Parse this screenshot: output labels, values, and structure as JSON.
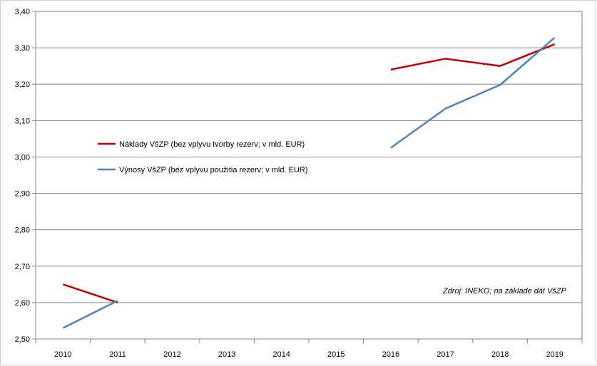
{
  "chart_data": {
    "type": "line",
    "x": [
      "2010",
      "2011",
      "2012",
      "2013",
      "2014",
      "2015",
      "2016",
      "2017",
      "2018",
      "2019"
    ],
    "ylim": [
      2.5,
      3.4
    ],
    "yticks": [
      "2,50",
      "2,60",
      "2,70",
      "2,80",
      "2,90",
      "3,00",
      "3,10",
      "3,20",
      "3,30",
      "3,40"
    ],
    "grid": "horizontal",
    "legend_position": "left",
    "series": [
      {
        "name": "Náklady VšZP (bez vplyvu tvorby rezerv; v mld. EUR)",
        "color": "#C00000",
        "values": [
          2.65,
          2.6,
          null,
          null,
          null,
          null,
          3.24,
          3.27,
          3.25,
          3.31
        ]
      },
      {
        "name": "Výnosy VšZP (bez vplyvu použitia rezerv; v mld. EUR)",
        "color": "#4F81BD",
        "values": [
          2.53,
          2.605,
          null,
          null,
          null,
          null,
          3.025,
          3.133,
          3.198,
          3.328
        ]
      }
    ],
    "annotation": "Zdroj: INEKO;  na základe dát VšZP"
  }
}
